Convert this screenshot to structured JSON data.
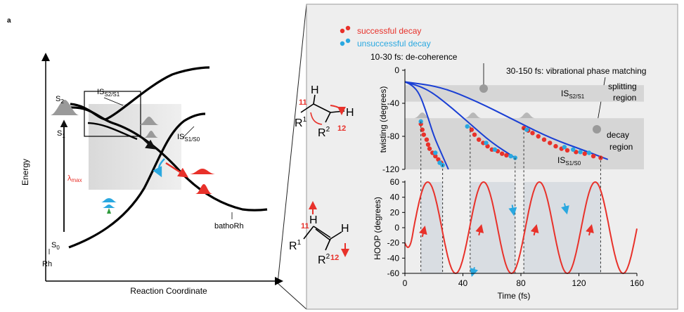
{
  "panel_label": "a",
  "left": {
    "y_axis_label": "Energy",
    "x_axis_label": "Reaction Coordinate",
    "states": {
      "s2": "S",
      "s2_sub": "2",
      "s1": "S",
      "s1_sub": "1",
      "s0": "S",
      "s0_sub": "0"
    },
    "lambda": "λ",
    "lambda_sub": "max",
    "is_s2s1": "IS",
    "is_s2s1_sub": "S2/S1",
    "is_s1s0": "IS",
    "is_s1s0_sub": "S1/S0",
    "rh": "Rh",
    "batho": "bathoRh"
  },
  "legend": {
    "success": "successful decay",
    "fail": "unsuccessful decay"
  },
  "annotations": {
    "decoherence": "10-30 fs: de-coherence",
    "phase_matching": "30-150 fs: vibrational phase matching",
    "splitting": "splitting",
    "splitting2": "region",
    "decay": "decay",
    "decay2": "region",
    "is_top": "IS",
    "is_top_sub": "S2/S1",
    "is_bottom": "IS",
    "is_bottom_sub": "S1/S0"
  },
  "molecule": {
    "top": {
      "h1": "H",
      "h2": "H",
      "r1": "R",
      "r1_sup": "1",
      "r2": "R",
      "r2_sup": "2",
      "n11": "11",
      "n12": "12"
    },
    "bottom": {
      "h1": "H",
      "h2": "H",
      "r1": "R",
      "r1_sup": "1",
      "r2": "R",
      "r2_sup": "2",
      "n11": "11",
      "n12": "12"
    }
  },
  "chart_data": [
    {
      "type": "scatter",
      "ylabel": "twisting (degrees)",
      "ylim": [
        -120,
        0
      ],
      "yticks": [
        0,
        -40,
        -80,
        -120
      ],
      "x_range": [
        0,
        160
      ],
      "series": [
        {
          "name": "successful decay",
          "color": "#e8312a",
          "points": [
            [
              11,
              -65
            ],
            [
              12,
              -72
            ],
            [
              13,
              -78
            ],
            [
              15,
              -84
            ],
            [
              16,
              -90
            ],
            [
              17,
              -95
            ],
            [
              19,
              -100
            ],
            [
              21,
              -104
            ],
            [
              23,
              -108
            ],
            [
              25,
              -112
            ],
            [
              46,
              -72
            ],
            [
              48,
              -78
            ],
            [
              51,
              -84
            ],
            [
              54,
              -88
            ],
            [
              57,
              -92
            ],
            [
              60,
              -96
            ],
            [
              64,
              -98
            ],
            [
              67,
              -101
            ],
            [
              70,
              -103
            ],
            [
              82,
              -70
            ],
            [
              85,
              -73
            ],
            [
              88,
              -76
            ],
            [
              92,
              -80
            ],
            [
              96,
              -84
            ],
            [
              100,
              -88
            ],
            [
              104,
              -92
            ],
            [
              108,
              -95
            ],
            [
              112,
              -97
            ],
            [
              118,
              -99
            ],
            [
              124,
              -101
            ],
            [
              130,
              -104
            ],
            [
              135,
              -106
            ]
          ]
        },
        {
          "name": "unsuccessful decay",
          "color": "#2aa8e0",
          "points": [
            [
              11,
              -62
            ],
            [
              21,
              -100
            ],
            [
              24,
              -112
            ],
            [
              26,
              -115
            ],
            [
              43,
              -68
            ],
            [
              56,
              -88
            ],
            [
              62,
              -96
            ],
            [
              73,
              -104
            ],
            [
              76,
              -106
            ],
            [
              84,
              -72
            ],
            [
              110,
              -93
            ],
            [
              116,
              -96
            ],
            [
              121,
              -99
            ],
            [
              127,
              -100
            ]
          ]
        }
      ],
      "curves": [
        {
          "color": "#1a3fd4",
          "points": [
            [
              0,
              -14
            ],
            [
              5,
              -18
            ],
            [
              10,
              -28
            ],
            [
              15,
              -52
            ],
            [
              20,
              -80
            ],
            [
              25,
              -100
            ],
            [
              30,
              -120
            ]
          ]
        },
        {
          "color": "#1a3fd4",
          "points": [
            [
              0,
              -14
            ],
            [
              15,
              -22
            ],
            [
              30,
              -42
            ],
            [
              45,
              -65
            ],
            [
              60,
              -88
            ],
            [
              76,
              -106
            ]
          ]
        },
        {
          "color": "#1a3fd4",
          "points": [
            [
              0,
              -14
            ],
            [
              25,
              -20
            ],
            [
              50,
              -38
            ],
            [
              75,
              -60
            ],
            [
              100,
              -82
            ],
            [
              125,
              -98
            ],
            [
              140,
              -108
            ]
          ]
        }
      ]
    },
    {
      "type": "line",
      "xlabel": "Time (fs)",
      "ylabel": "HOOP (degrees)",
      "xlim": [
        0,
        160
      ],
      "ylim": [
        -60,
        60
      ],
      "xticks": [
        0,
        40,
        80,
        120,
        160
      ],
      "yticks": [
        60,
        40,
        20,
        0,
        -20,
        -40,
        -60
      ],
      "amplitude": 60,
      "period_fs": 38.5,
      "phase_offset_fs": -3.5,
      "color": "#e8312a"
    }
  ],
  "colors": {
    "red": "#e8312a",
    "blue": "#2aa8e0",
    "dark_blue": "#1a3fd4",
    "green": "#2e9a3c"
  }
}
